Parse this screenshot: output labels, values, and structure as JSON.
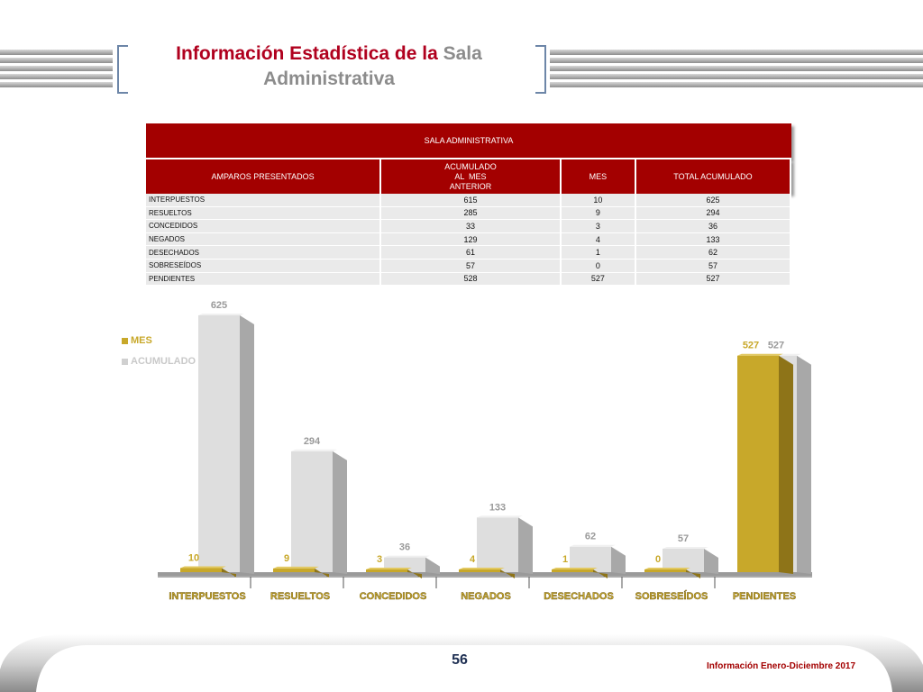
{
  "header": {
    "title_red": "Información Estadística de la",
    "title_gray_1": "Sala",
    "title_gray_2": "Administrativa"
  },
  "table": {
    "caption": "SALA ADMINISTRATIVA",
    "headers": [
      "AMPAROS PRESENTADOS",
      "ACUMULADO\nAL  MES\nANTERIOR",
      "MES",
      "TOTAL ACUMULADO"
    ],
    "headers_split": {
      "h2_line1": "ACUMULADO",
      "h2_line2": "AL  MES",
      "h2_line3": "ANTERIOR"
    },
    "rows": [
      {
        "label": "INTERPUESTOS",
        "anterior": "615",
        "mes": "10",
        "total": "625"
      },
      {
        "label": "RESUELTOS",
        "anterior": "285",
        "mes": "9",
        "total": "294"
      },
      {
        "label": "CONCEDIDOS",
        "anterior": "33",
        "mes": "3",
        "total": "36"
      },
      {
        "label": "NEGADOS",
        "anterior": "129",
        "mes": "4",
        "total": "133"
      },
      {
        "label": "DESECHADOS",
        "anterior": "61",
        "mes": "1",
        "total": "62"
      },
      {
        "label": "SOBRESEÍDOS",
        "anterior": "57",
        "mes": "0",
        "total": "57"
      },
      {
        "label": "PENDIENTES",
        "anterior": "528",
        "mes": "527",
        "total": "527"
      }
    ]
  },
  "chart_data": {
    "type": "bar",
    "categories": [
      "INTERPUESTOS",
      "RESUELTOS",
      "CONCEDIDOS",
      "NEGADOS",
      "DESECHADOS",
      "SOBRESEÍDOS",
      "PENDIENTES"
    ],
    "series": [
      {
        "name": "MES",
        "values": [
          10,
          9,
          3,
          4,
          1,
          0,
          527
        ],
        "color": "#c8a82a"
      },
      {
        "name": "ACUMULADO",
        "values": [
          625,
          294,
          36,
          133,
          62,
          57,
          527
        ],
        "color": "#d9d9d9"
      }
    ],
    "legend": "left",
    "grid": false
  },
  "footer": {
    "page": "56",
    "text": "Información Enero-Diciembre 2017"
  },
  "colors": {
    "accent": "#a30000",
    "mes": "#c8a82a",
    "acumulado": "#d9d9d9"
  }
}
